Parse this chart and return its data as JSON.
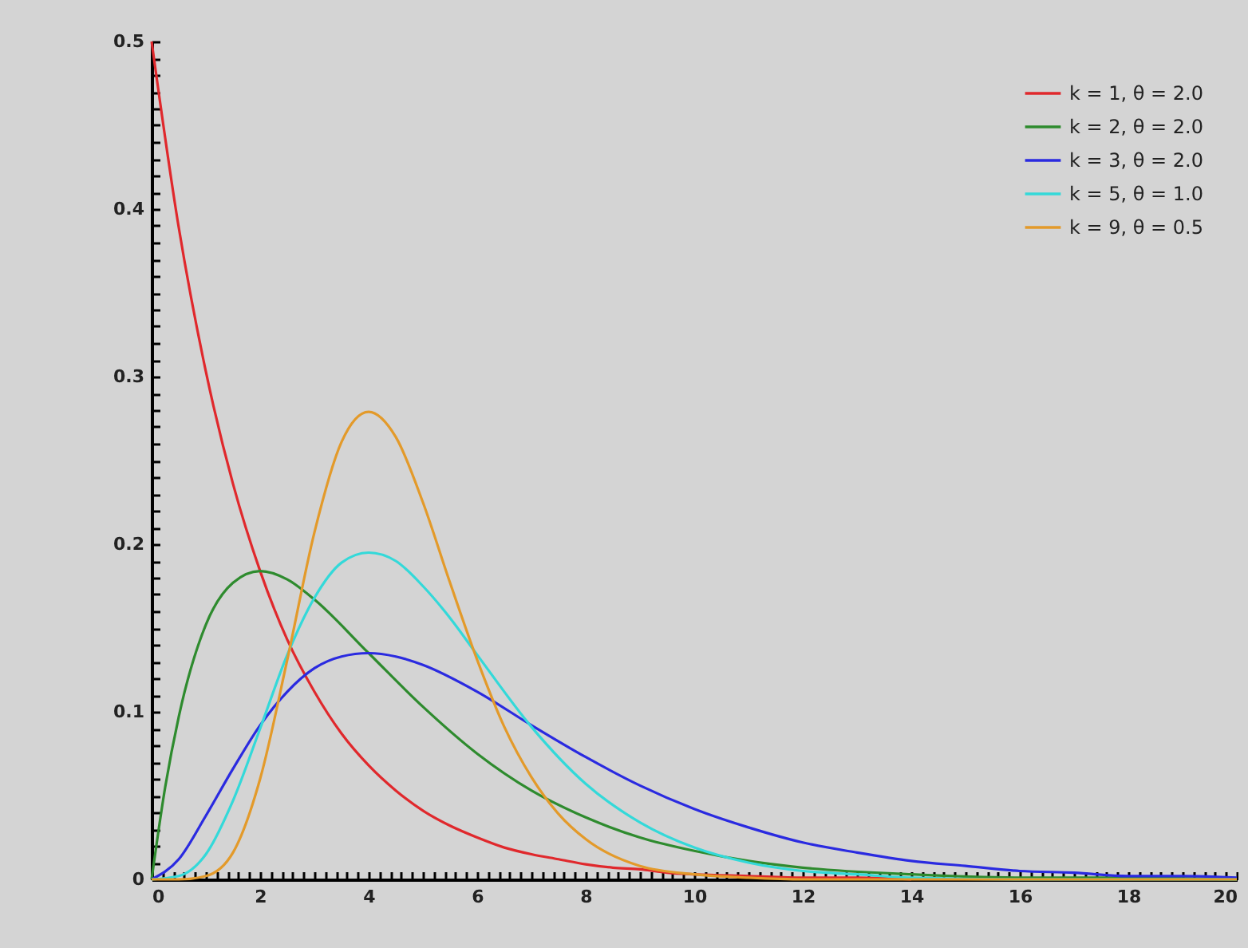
{
  "chart_data": {
    "type": "line",
    "xlim": [
      0,
      20
    ],
    "ylim": [
      0,
      0.5
    ],
    "xticks": [
      0,
      {
        "value": 0.2,
        "label": null
      },
      {
        "value": 0.4,
        "label": null
      },
      {
        "value": 0.6,
        "label": null
      },
      {
        "value": 0.8,
        "label": null
      },
      {
        "value": 1,
        "label": null
      },
      {
        "value": 1.2,
        "label": null
      },
      {
        "value": 1.4,
        "label": null
      },
      {
        "value": 1.6,
        "label": null
      },
      {
        "value": 1.8,
        "label": null
      },
      2,
      {
        "value": 2.2,
        "label": null
      },
      {
        "value": 2.4,
        "label": null
      },
      {
        "value": 2.6,
        "label": null
      },
      {
        "value": 2.8,
        "label": null
      },
      {
        "value": 3,
        "label": null
      },
      {
        "value": 3.2,
        "label": null
      },
      {
        "value": 3.4,
        "label": null
      },
      {
        "value": 3.6,
        "label": null
      },
      {
        "value": 3.8,
        "label": null
      },
      4,
      {
        "value": 4.2,
        "label": null
      },
      {
        "value": 4.4,
        "label": null
      },
      {
        "value": 4.6,
        "label": null
      },
      {
        "value": 4.8,
        "label": null
      },
      {
        "value": 5,
        "label": null
      },
      {
        "value": 5.2,
        "label": null
      },
      {
        "value": 5.4,
        "label": null
      },
      {
        "value": 5.6,
        "label": null
      },
      {
        "value": 5.8,
        "label": null
      },
      6,
      {
        "value": 6.2,
        "label": null
      },
      {
        "value": 6.4,
        "label": null
      },
      {
        "value": 6.6,
        "label": null
      },
      {
        "value": 6.8,
        "label": null
      },
      {
        "value": 7,
        "label": null
      },
      {
        "value": 7.2,
        "label": null
      },
      {
        "value": 7.4,
        "label": null
      },
      {
        "value": 7.6,
        "label": null
      },
      {
        "value": 7.8,
        "label": null
      },
      8,
      {
        "value": 8.2,
        "label": null
      },
      {
        "value": 8.4,
        "label": null
      },
      {
        "value": 8.6,
        "label": null
      },
      {
        "value": 8.8,
        "label": null
      },
      {
        "value": 9,
        "label": null
      },
      {
        "value": 9.2,
        "label": null
      },
      {
        "value": 9.4,
        "label": null
      },
      {
        "value": 9.6,
        "label": null
      },
      {
        "value": 9.8,
        "label": null
      },
      10,
      {
        "value": 10.2,
        "label": null
      },
      {
        "value": 10.4,
        "label": null
      },
      {
        "value": 10.6,
        "label": null
      },
      {
        "value": 10.8,
        "label": null
      },
      {
        "value": 11,
        "label": null
      },
      {
        "value": 11.2,
        "label": null
      },
      {
        "value": 11.4,
        "label": null
      },
      {
        "value": 11.6,
        "label": null
      },
      {
        "value": 11.8,
        "label": null
      },
      12,
      {
        "value": 12.2,
        "label": null
      },
      {
        "value": 12.4,
        "label": null
      },
      {
        "value": 12.6,
        "label": null
      },
      {
        "value": 12.8,
        "label": null
      },
      {
        "value": 13,
        "label": null
      },
      {
        "value": 13.2,
        "label": null
      },
      {
        "value": 13.4,
        "label": null
      },
      {
        "value": 13.6,
        "label": null
      },
      {
        "value": 13.8,
        "label": null
      },
      14,
      {
        "value": 14.2,
        "label": null
      },
      {
        "value": 14.4,
        "label": null
      },
      {
        "value": 14.6,
        "label": null
      },
      {
        "value": 14.8,
        "label": null
      },
      {
        "value": 15,
        "label": null
      },
      {
        "value": 15.2,
        "label": null
      },
      {
        "value": 15.4,
        "label": null
      },
      {
        "value": 15.6,
        "label": null
      },
      {
        "value": 15.8,
        "label": null
      },
      16,
      {
        "value": 16.2,
        "label": null
      },
      {
        "value": 16.4,
        "label": null
      },
      {
        "value": 16.6,
        "label": null
      },
      {
        "value": 16.8,
        "label": null
      },
      {
        "value": 17,
        "label": null
      },
      {
        "value": 17.2,
        "label": null
      },
      {
        "value": 17.4,
        "label": null
      },
      {
        "value": 17.6,
        "label": null
      },
      {
        "value": 17.8,
        "label": null
      },
      18,
      {
        "value": 18.2,
        "label": null
      },
      {
        "value": 18.4,
        "label": null
      },
      {
        "value": 18.6,
        "label": null
      },
      {
        "value": 18.8,
        "label": null
      },
      {
        "value": 19,
        "label": null
      },
      {
        "value": 19.2,
        "label": null
      },
      {
        "value": 19.4,
        "label": null
      },
      {
        "value": 19.6,
        "label": null
      },
      {
        "value": 19.8,
        "label": null
      },
      20
    ],
    "yticks": [
      0,
      {
        "value": 0.01,
        "label": null
      },
      {
        "value": 0.02,
        "label": null
      },
      {
        "value": 0.03,
        "label": null
      },
      {
        "value": 0.04,
        "label": null
      },
      {
        "value": 0.05,
        "label": null
      },
      {
        "value": 0.06,
        "label": null
      },
      {
        "value": 0.07,
        "label": null
      },
      {
        "value": 0.08,
        "label": null
      },
      {
        "value": 0.09,
        "label": null
      },
      0.1,
      {
        "value": 0.11,
        "label": null
      },
      {
        "value": 0.12,
        "label": null
      },
      {
        "value": 0.13,
        "label": null
      },
      {
        "value": 0.14,
        "label": null
      },
      {
        "value": 0.15,
        "label": null
      },
      {
        "value": 0.16,
        "label": null
      },
      {
        "value": 0.17,
        "label": null
      },
      {
        "value": 0.18,
        "label": null
      },
      {
        "value": 0.19,
        "label": null
      },
      0.2,
      {
        "value": 0.21,
        "label": null
      },
      {
        "value": 0.22,
        "label": null
      },
      {
        "value": 0.23,
        "label": null
      },
      {
        "value": 0.24,
        "label": null
      },
      {
        "value": 0.25,
        "label": null
      },
      {
        "value": 0.26,
        "label": null
      },
      {
        "value": 0.27,
        "label": null
      },
      {
        "value": 0.28,
        "label": null
      },
      {
        "value": 0.29,
        "label": null
      },
      0.3,
      {
        "value": 0.31,
        "label": null
      },
      {
        "value": 0.32,
        "label": null
      },
      {
        "value": 0.33,
        "label": null
      },
      {
        "value": 0.34,
        "label": null
      },
      {
        "value": 0.35,
        "label": null
      },
      {
        "value": 0.36,
        "label": null
      },
      {
        "value": 0.37,
        "label": null
      },
      {
        "value": 0.38,
        "label": null
      },
      {
        "value": 0.39,
        "label": null
      },
      0.4,
      {
        "value": 0.41,
        "label": null
      },
      {
        "value": 0.42,
        "label": null
      },
      {
        "value": 0.43,
        "label": null
      },
      {
        "value": 0.44,
        "label": null
      },
      {
        "value": 0.45,
        "label": null
      },
      {
        "value": 0.46,
        "label": null
      },
      {
        "value": 0.47,
        "label": null
      },
      {
        "value": 0.48,
        "label": null
      },
      {
        "value": 0.49,
        "label": null
      },
      0.5
    ],
    "grid": false,
    "legend": "top right",
    "marker": "none",
    "line_style": "solid",
    "series": [
      {
        "name": "k = 1, θ = 2.0",
        "color": "#e0282c",
        "x": [
          0,
          0.5,
          1,
          1.5,
          2,
          2.5,
          3,
          3.5,
          4,
          4.5,
          5,
          5.5,
          6,
          6.5,
          7,
          7.5,
          8,
          8.5,
          9,
          9.5,
          10,
          11,
          12,
          13,
          14
        ],
        "values": [
          0.5,
          0.389,
          0.303,
          0.236,
          0.184,
          0.143,
          0.112,
          0.087,
          0.068,
          0.053,
          0.041,
          0.032,
          0.025,
          0.019,
          0.015,
          0.012,
          0.009,
          0.007,
          0.006,
          0.004,
          0.003,
          0.002,
          0.001,
          0.001,
          0
        ]
      },
      {
        "name": "k = 2, θ = 2.0",
        "color": "#2e8b2e",
        "x": [
          0,
          0.25,
          0.5,
          1,
          1.5,
          2,
          2.5,
          3,
          4,
          5,
          6,
          7,
          8,
          9,
          10,
          11,
          12,
          14,
          16,
          18,
          20
        ],
        "values": [
          0,
          0.055,
          0.097,
          0.152,
          0.177,
          0.184,
          0.179,
          0.167,
          0.135,
          0.103,
          0.075,
          0.053,
          0.037,
          0.025,
          0.017,
          0.011,
          0.007,
          0.003,
          0.001,
          0.001,
          0
        ]
      },
      {
        "name": "k = 3, θ = 2.0",
        "color": "#2a2ae0",
        "x": [
          0,
          0.5,
          1,
          1.5,
          2,
          2.5,
          3,
          3.5,
          4,
          4.5,
          5,
          6,
          7,
          8,
          9,
          10,
          11,
          12,
          13,
          14,
          15,
          16,
          17,
          18,
          19,
          20
        ],
        "values": [
          0,
          0.012,
          0.038,
          0.066,
          0.092,
          0.112,
          0.126,
          0.133,
          0.135,
          0.133,
          0.128,
          0.112,
          0.092,
          0.073,
          0.056,
          0.042,
          0.031,
          0.022,
          0.016,
          0.011,
          0.008,
          0.005,
          0.004,
          0.002,
          0.002,
          0.001
        ]
      },
      {
        "name": "k = 5, θ = 1.0",
        "color": "#33d9d9",
        "x": [
          0,
          0.5,
          1,
          1.5,
          2,
          2.5,
          3,
          3.5,
          4,
          4.5,
          5,
          5.5,
          6,
          7,
          8,
          9,
          10,
          11,
          12,
          13,
          14,
          16,
          20
        ],
        "values": [
          0,
          0.002,
          0.015,
          0.047,
          0.09,
          0.134,
          0.168,
          0.189,
          0.195,
          0.19,
          0.175,
          0.156,
          0.134,
          0.091,
          0.057,
          0.034,
          0.019,
          0.01,
          0.005,
          0.003,
          0.001,
          0,
          0
        ]
      },
      {
        "name": "k = 9, θ = 0.5",
        "color": "#e39a2a",
        "x": [
          0,
          0.5,
          1,
          1.5,
          2,
          2.5,
          3,
          3.5,
          4,
          4.5,
          5,
          5.5,
          6,
          6.5,
          7,
          7.5,
          8,
          9,
          10,
          11,
          12,
          14,
          20
        ],
        "values": [
          0,
          0,
          0.002,
          0.016,
          0.06,
          0.131,
          0.207,
          0.261,
          0.279,
          0.264,
          0.225,
          0.177,
          0.131,
          0.091,
          0.061,
          0.039,
          0.024,
          0.008,
          0.003,
          0.001,
          0,
          0,
          0
        ]
      }
    ]
  }
}
